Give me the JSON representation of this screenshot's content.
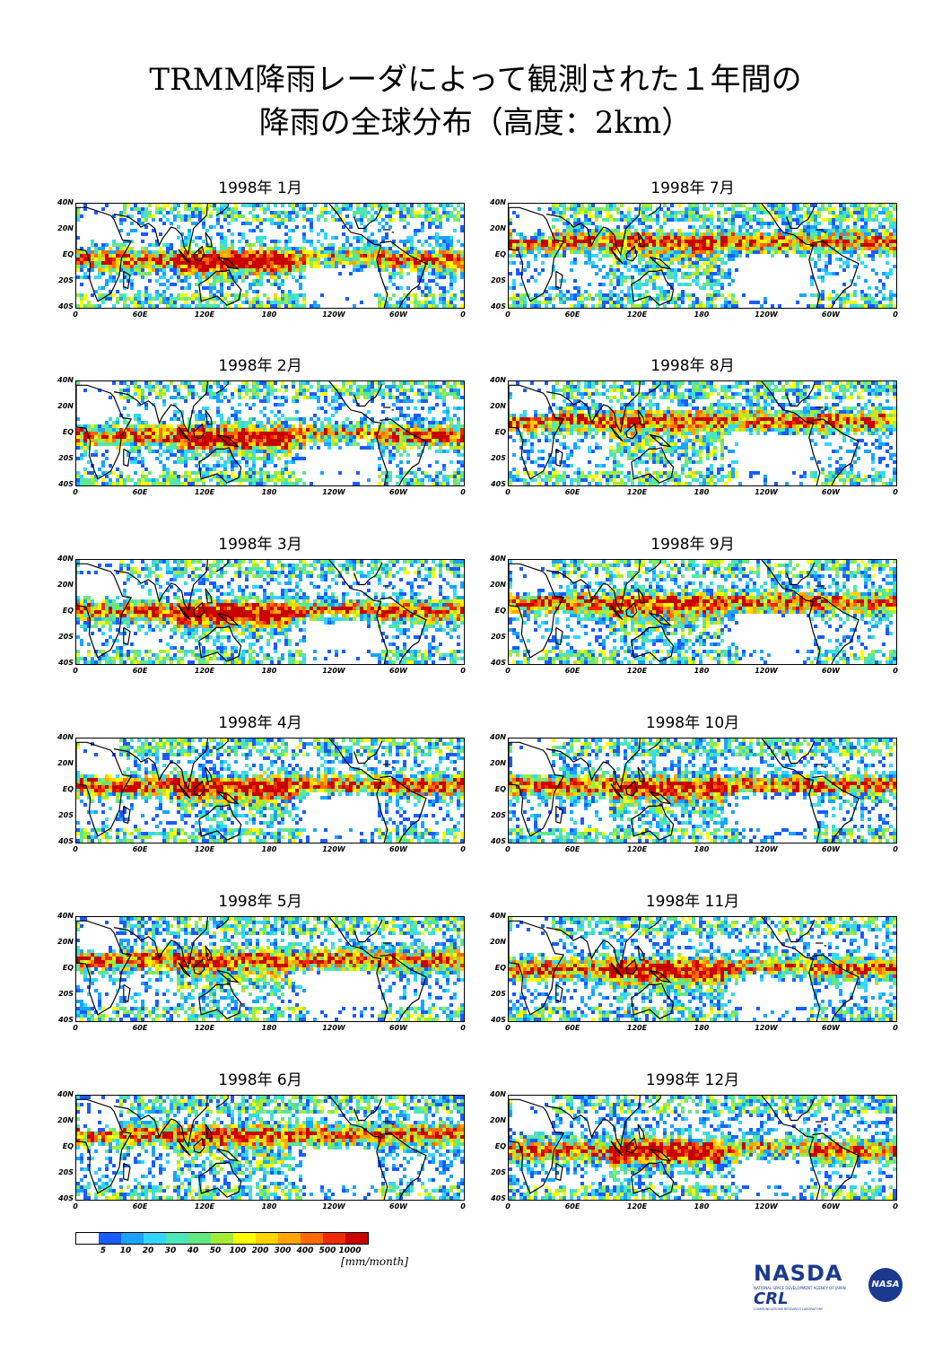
{
  "title": {
    "line1": "TRMM降雨レーダによって観測された１年間の",
    "line2": "降雨の全球分布（高度：2km）"
  },
  "panels": [
    {
      "label": "1998年 1月"
    },
    {
      "label": "1998年 7月"
    },
    {
      "label": "1998年 2月"
    },
    {
      "label": "1998年 8月"
    },
    {
      "label": "1998年 3月"
    },
    {
      "label": "1998年 9月"
    },
    {
      "label": "1998年 4月"
    },
    {
      "label": "1998年 10月"
    },
    {
      "label": "1998年 5月"
    },
    {
      "label": "1998年 11月"
    },
    {
      "label": "1998年 6月"
    },
    {
      "label": "1998年 12月"
    }
  ],
  "axes": {
    "y_labels": [
      "40N",
      "20N",
      "EQ",
      "20S",
      "40S"
    ],
    "x_labels": [
      "0",
      "60E",
      "120E",
      "180",
      "120W",
      "60W",
      "0"
    ]
  },
  "legend": {
    "colors": [
      "#ffffff",
      "#1a5cff",
      "#1aa3ff",
      "#33d6ff",
      "#4de6b8",
      "#66e680",
      "#a6eb33",
      "#ffff00",
      "#ffd400",
      "#ffa500",
      "#ff6a00",
      "#f02a00",
      "#c80000"
    ],
    "labels": [
      "5",
      "10",
      "20",
      "30",
      "40",
      "50",
      "100",
      "200",
      "300",
      "400",
      "500",
      "1000"
    ],
    "unit": "[mm/month]"
  },
  "logos": {
    "nasda": "NASDA",
    "nasda_sub": "NATIONAL SPACE DEVELOPMENT AGENCY OF JAPAN",
    "crl": "CRL",
    "crl_sub": "COMMUNICATIONS RESEARCH LABORATORY",
    "nasa": "NASA"
  }
}
